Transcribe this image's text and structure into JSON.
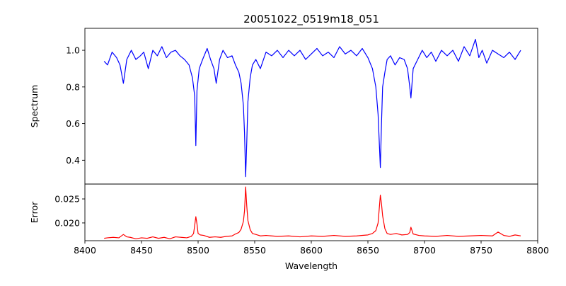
{
  "chart_data": [
    {
      "type": "line",
      "title": "20051022_0519m18_051",
      "xlabel": "",
      "ylabel": "Spectrum",
      "xlim": [
        8400,
        8800
      ],
      "ylim": [
        0.27,
        1.12
      ],
      "yticks": [
        0.4,
        0.6,
        0.8,
        1.0
      ],
      "ytick_labels": [
        "0.4",
        "0.6",
        "0.8",
        "1.0"
      ],
      "grid": false,
      "series": [
        {
          "color": "#0000ff",
          "x": [
            8417,
            8420,
            8424,
            8428,
            8431,
            8434,
            8437,
            8441,
            8445,
            8449,
            8452,
            8456,
            8460,
            8464,
            8468,
            8472,
            8476,
            8480,
            8484,
            8488,
            8492,
            8495,
            8497,
            8498,
            8499,
            8501,
            8504,
            8508,
            8511,
            8514,
            8516,
            8519,
            8522,
            8526,
            8530,
            8533,
            8536,
            8538,
            8540,
            8541,
            8542,
            8543,
            8544,
            8546,
            8548,
            8551,
            8555,
            8560,
            8565,
            8570,
            8575,
            8580,
            8585,
            8590,
            8595,
            8600,
            8605,
            8610,
            8615,
            8620,
            8625,
            8630,
            8635,
            8640,
            8645,
            8650,
            8654,
            8657,
            8659,
            8661,
            8662,
            8663,
            8665,
            8667,
            8670,
            8674,
            8678,
            8682,
            8685,
            8687,
            8688,
            8690,
            8694,
            8698,
            8702,
            8706,
            8710,
            8715,
            8720,
            8725,
            8730,
            8735,
            8740,
            8745,
            8748,
            8751,
            8755,
            8760,
            8765,
            8770,
            8775,
            8780,
            8785
          ],
          "y": [
            0.94,
            0.92,
            0.99,
            0.96,
            0.92,
            0.82,
            0.95,
            1.0,
            0.95,
            0.97,
            0.99,
            0.9,
            1.0,
            0.97,
            1.02,
            0.96,
            0.99,
            1.0,
            0.97,
            0.95,
            0.92,
            0.85,
            0.75,
            0.48,
            0.78,
            0.9,
            0.95,
            1.01,
            0.95,
            0.9,
            0.82,
            0.95,
            1.0,
            0.96,
            0.97,
            0.92,
            0.88,
            0.82,
            0.7,
            0.55,
            0.31,
            0.5,
            0.72,
            0.85,
            0.92,
            0.95,
            0.9,
            0.99,
            0.97,
            1.0,
            0.96,
            1.0,
            0.97,
            1.0,
            0.95,
            0.98,
            1.01,
            0.97,
            0.99,
            0.96,
            1.02,
            0.98,
            1.0,
            0.97,
            1.01,
            0.96,
            0.9,
            0.8,
            0.65,
            0.36,
            0.6,
            0.8,
            0.88,
            0.95,
            0.97,
            0.92,
            0.96,
            0.95,
            0.9,
            0.8,
            0.74,
            0.9,
            0.95,
            1.0,
            0.96,
            0.99,
            0.94,
            1.0,
            0.97,
            1.0,
            0.94,
            1.02,
            0.97,
            1.06,
            0.96,
            1.0,
            0.93,
            1.0,
            0.98,
            0.96,
            0.99,
            0.95,
            1.0
          ]
        }
      ]
    },
    {
      "type": "line",
      "xlabel": "Wavelength",
      "ylabel": "Error",
      "xlim": [
        8400,
        8800
      ],
      "ylim": [
        0.0163,
        0.0281
      ],
      "xticks": [
        8400,
        8450,
        8500,
        8550,
        8600,
        8650,
        8700,
        8750,
        8800
      ],
      "xtick_labels": [
        "8400",
        "8450",
        "8500",
        "8550",
        "8600",
        "8650",
        "8700",
        "8750",
        "8800"
      ],
      "yticks": [
        0.02,
        0.025
      ],
      "ytick_labels": [
        "0.020",
        "0.025"
      ],
      "grid": false,
      "series": [
        {
          "color": "#ff0000",
          "x": [
            8417,
            8420,
            8425,
            8430,
            8434,
            8437,
            8440,
            8445,
            8450,
            8455,
            8460,
            8465,
            8470,
            8475,
            8480,
            8485,
            8490,
            8494,
            8496,
            8497,
            8498,
            8499,
            8500,
            8502,
            8505,
            8510,
            8515,
            8520,
            8525,
            8530,
            8533,
            8536,
            8538,
            8540,
            8541,
            8542,
            8543,
            8544,
            8546,
            8548,
            8551,
            8555,
            8560,
            8570,
            8580,
            8590,
            8600,
            8610,
            8620,
            8630,
            8640,
            8650,
            8654,
            8657,
            8659,
            8661,
            8662,
            8663,
            8665,
            8667,
            8670,
            8675,
            8680,
            8685,
            8687,
            8688,
            8690,
            8695,
            8700,
            8710,
            8720,
            8730,
            8740,
            8750,
            8760,
            8765,
            8770,
            8775,
            8780,
            8785
          ],
          "y": [
            0.0168,
            0.0169,
            0.017,
            0.0169,
            0.0176,
            0.0171,
            0.017,
            0.0167,
            0.0169,
            0.0168,
            0.0171,
            0.0168,
            0.017,
            0.0167,
            0.0171,
            0.017,
            0.0169,
            0.0172,
            0.0178,
            0.0195,
            0.0213,
            0.0198,
            0.0178,
            0.0175,
            0.0174,
            0.017,
            0.0171,
            0.017,
            0.0172,
            0.0173,
            0.0177,
            0.018,
            0.0187,
            0.0203,
            0.0225,
            0.0275,
            0.0235,
            0.0205,
            0.0186,
            0.0178,
            0.0176,
            0.0173,
            0.0174,
            0.0172,
            0.0173,
            0.0171,
            0.0173,
            0.0172,
            0.0174,
            0.0172,
            0.0173,
            0.0175,
            0.0178,
            0.0184,
            0.02,
            0.0258,
            0.024,
            0.0215,
            0.0188,
            0.0178,
            0.0176,
            0.0178,
            0.0175,
            0.0176,
            0.018,
            0.0191,
            0.0177,
            0.0174,
            0.0173,
            0.0172,
            0.0174,
            0.0172,
            0.0173,
            0.0174,
            0.0173,
            0.0181,
            0.0174,
            0.0172,
            0.0175,
            0.0173
          ]
        }
      ]
    }
  ]
}
